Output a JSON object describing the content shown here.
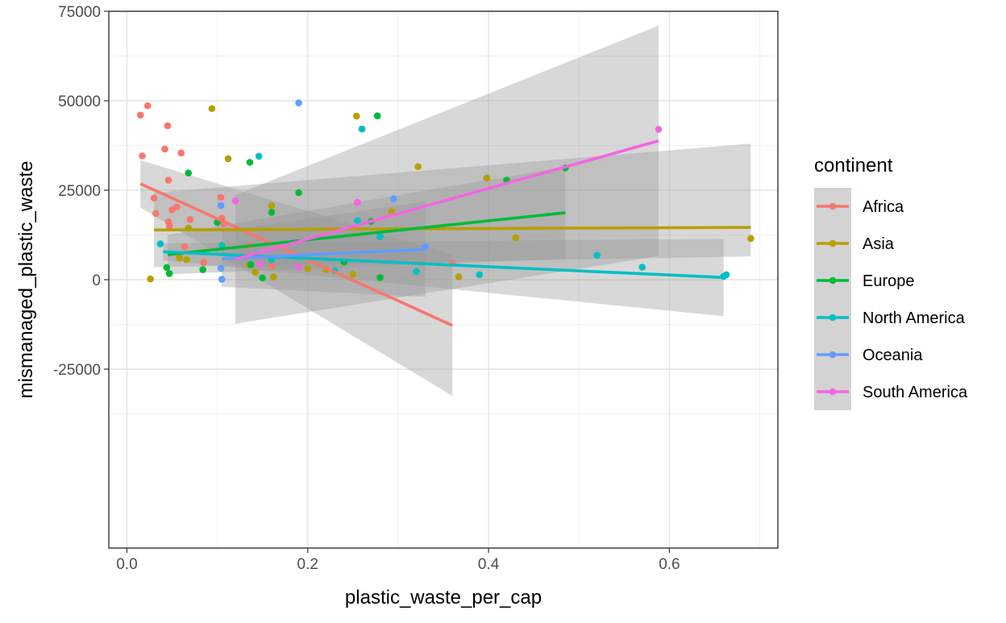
{
  "chart_data": {
    "type": "scatter",
    "xlabel": "plastic_waste_per_cap",
    "ylabel": "mismanaged_plastic_waste",
    "xlim": [
      -0.02,
      0.72
    ],
    "ylim": [
      -75000,
      75000
    ],
    "x_ticks": [
      0.0,
      0.2,
      0.4,
      0.6
    ],
    "x_tick_labels": [
      "0.0",
      "0.2",
      "0.4",
      "0.6"
    ],
    "y_ticks": [
      -25000,
      0,
      25000,
      50000,
      75000
    ],
    "y_tick_labels": [
      "-25000",
      "0",
      "25000",
      "50000",
      "75000"
    ],
    "grid": true,
    "legend": {
      "title": "continent",
      "position": "right"
    },
    "series": [
      {
        "name": "Africa",
        "color": "#F8766D",
        "points": [
          [
            0.015,
            46000
          ],
          [
            0.017,
            34600
          ],
          [
            0.023,
            48600
          ],
          [
            0.03,
            22800
          ],
          [
            0.032,
            18500
          ],
          [
            0.042,
            36500
          ],
          [
            0.045,
            43000
          ],
          [
            0.046,
            27800
          ],
          [
            0.046,
            16200
          ],
          [
            0.047,
            14900
          ],
          [
            0.05,
            19500
          ],
          [
            0.055,
            20300
          ],
          [
            0.06,
            35400
          ],
          [
            0.064,
            9200
          ],
          [
            0.07,
            16800
          ],
          [
            0.085,
            4800
          ],
          [
            0.104,
            23000
          ],
          [
            0.105,
            17200
          ],
          [
            0.107,
            15600
          ],
          [
            0.135,
            9500
          ],
          [
            0.16,
            3900
          ],
          [
            0.36,
            4600
          ]
        ],
        "fit": {
          "x": [
            0.015,
            0.36
          ],
          "y": [
            26800,
            -12800
          ],
          "ci_lower": [
            20200,
            -32500
          ],
          "ci_upper": [
            33400,
            6900
          ]
        }
      },
      {
        "name": "Asia",
        "color": "#B79F00",
        "points": [
          [
            0.026,
            200
          ],
          [
            0.058,
            6100
          ],
          [
            0.066,
            5600
          ],
          [
            0.068,
            14400
          ],
          [
            0.094,
            47800
          ],
          [
            0.112,
            33800
          ],
          [
            0.135,
            4100
          ],
          [
            0.142,
            2100
          ],
          [
            0.162,
            800
          ],
          [
            0.16,
            20700
          ],
          [
            0.2,
            3100
          ],
          [
            0.22,
            2800
          ],
          [
            0.25,
            1500
          ],
          [
            0.254,
            45700
          ],
          [
            0.293,
            19000
          ],
          [
            0.322,
            31600
          ],
          [
            0.367,
            800
          ],
          [
            0.398,
            28400
          ],
          [
            0.43,
            11700
          ],
          [
            0.69,
            11500
          ]
        ],
        "fit": {
          "x": [
            0.03,
            0.69
          ],
          "y": [
            13900,
            14600
          ],
          "ci_lower": [
            3500,
            6500
          ],
          "ci_upper": [
            24300,
            38000
          ]
        }
      },
      {
        "name": "Europe",
        "color": "#00BA38",
        "points": [
          [
            0.044,
            3400
          ],
          [
            0.047,
            1700
          ],
          [
            0.068,
            29800
          ],
          [
            0.084,
            2800
          ],
          [
            0.1,
            16000
          ],
          [
            0.136,
            32800
          ],
          [
            0.137,
            4200
          ],
          [
            0.15,
            500
          ],
          [
            0.16,
            18800
          ],
          [
            0.19,
            24300
          ],
          [
            0.24,
            4900
          ],
          [
            0.27,
            16300
          ],
          [
            0.277,
            45800
          ],
          [
            0.28,
            600
          ],
          [
            0.42,
            27800
          ],
          [
            0.485,
            31200
          ]
        ],
        "fit": {
          "x": [
            0.045,
            0.485
          ],
          "y": [
            7000,
            18700
          ],
          "ci_lower": [
            1500,
            5800
          ],
          "ci_upper": [
            12500,
            31600
          ]
        }
      },
      {
        "name": "North America",
        "color": "#00BFC4",
        "points": [
          [
            0.037,
            10000
          ],
          [
            0.105,
            9600
          ],
          [
            0.146,
            34500
          ],
          [
            0.16,
            5600
          ],
          [
            0.23,
            2500
          ],
          [
            0.255,
            16500
          ],
          [
            0.26,
            42100
          ],
          [
            0.28,
            12000
          ],
          [
            0.32,
            2300
          ],
          [
            0.39,
            1400
          ],
          [
            0.52,
            6800
          ],
          [
            0.57,
            3500
          ],
          [
            0.66,
            900
          ],
          [
            0.663,
            1400
          ]
        ],
        "fit": {
          "x": [
            0.04,
            0.66
          ],
          "y": [
            7800,
            600
          ],
          "ci_lower": [
            5400,
            -10200
          ],
          "ci_upper": [
            10200,
            11400
          ]
        }
      },
      {
        "name": "Oceania",
        "color": "#619CFF",
        "points": [
          [
            0.104,
            20700
          ],
          [
            0.104,
            3200
          ],
          [
            0.105,
            100
          ],
          [
            0.19,
            49400
          ],
          [
            0.295,
            22600
          ],
          [
            0.33,
            9200
          ]
        ],
        "fit": {
          "x": [
            0.105,
            0.33
          ],
          "y": [
            5800,
            8500
          ],
          "ci_lower": [
            -2000,
            -4800
          ],
          "ci_upper": [
            13600,
            21800
          ]
        }
      },
      {
        "name": "South America",
        "color": "#F564E3",
        "points": [
          [
            0.12,
            22000
          ],
          [
            0.147,
            4400
          ],
          [
            0.19,
            3500
          ],
          [
            0.255,
            21600
          ],
          [
            0.588,
            42000
          ]
        ],
        "fit": {
          "x": [
            0.12,
            0.588
          ],
          "y": [
            5700,
            38800
          ],
          "ci_lower": [
            -12300,
            6600
          ],
          "ci_upper": [
            23700,
            71000
          ]
        }
      }
    ]
  }
}
